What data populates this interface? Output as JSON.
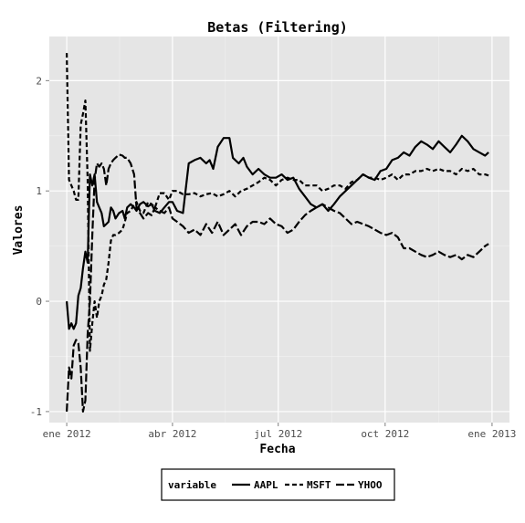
{
  "chart_data": {
    "type": "line",
    "title": "Betas (Filtering)",
    "xlabel": "Fecha",
    "ylabel": "Valores",
    "x_ticks": [
      "ene 2012",
      "abr 2012",
      "jul 2012",
      "oct 2012",
      "ene 2013"
    ],
    "x_tick_days": [
      0,
      91,
      182,
      274,
      366
    ],
    "y_ticks": [
      -1,
      0,
      1,
      2
    ],
    "ylim": [
      -1.1,
      2.4
    ],
    "xlim_days": [
      -15,
      381
    ],
    "grid": true,
    "legend": {
      "position": "bottom",
      "title": "variable",
      "entries": [
        "AAPL",
        "MSFT",
        "YHOO"
      ]
    },
    "series": [
      {
        "name": "AAPL",
        "line_style": "solid",
        "color": "#000000",
        "x_days": [
          0,
          2,
          4,
          6,
          8,
          10,
          12,
          14,
          16,
          18,
          20,
          22,
          24,
          26,
          28,
          30,
          32,
          34,
          36,
          38,
          40,
          42,
          45,
          48,
          50,
          52,
          55,
          58,
          60,
          63,
          66,
          70,
          73,
          76,
          80,
          84,
          88,
          91,
          95,
          100,
          105,
          110,
          115,
          120,
          123,
          126,
          130,
          135,
          140,
          143,
          148,
          152,
          155,
          160,
          165,
          170,
          175,
          180,
          185,
          190,
          195,
          200,
          205,
          210,
          215,
          220,
          225,
          230,
          235,
          240,
          245,
          250,
          255,
          260,
          265,
          270,
          275,
          280,
          285,
          290,
          295,
          300,
          305,
          310,
          315,
          320,
          325,
          330,
          335,
          340,
          345,
          350,
          355,
          360,
          363
        ],
        "values": [
          0.0,
          -0.25,
          -0.2,
          -0.25,
          -0.2,
          0.05,
          0.12,
          0.3,
          0.45,
          0.35,
          1.15,
          1.05,
          1.15,
          0.9,
          0.85,
          0.8,
          0.68,
          0.7,
          0.72,
          0.85,
          0.82,
          0.75,
          0.8,
          0.82,
          0.75,
          0.85,
          0.88,
          0.85,
          0.82,
          0.88,
          0.9,
          0.86,
          0.88,
          0.82,
          0.8,
          0.85,
          0.9,
          0.9,
          0.82,
          0.8,
          1.25,
          1.28,
          1.3,
          1.25,
          1.28,
          1.2,
          1.4,
          1.48,
          1.48,
          1.3,
          1.25,
          1.3,
          1.22,
          1.15,
          1.2,
          1.15,
          1.12,
          1.12,
          1.15,
          1.1,
          1.12,
          1.02,
          0.95,
          0.88,
          0.85,
          0.88,
          0.82,
          0.88,
          0.95,
          1.0,
          1.05,
          1.1,
          1.15,
          1.12,
          1.1,
          1.18,
          1.2,
          1.28,
          1.3,
          1.35,
          1.32,
          1.4,
          1.45,
          1.42,
          1.38,
          1.45,
          1.4,
          1.35,
          1.42,
          1.5,
          1.45,
          1.38,
          1.35,
          1.32,
          1.35
        ]
      },
      {
        "name": "MSFT",
        "line_style": "dashed",
        "color": "#000000",
        "x_days": [
          0,
          2,
          4,
          6,
          8,
          10,
          12,
          14,
          16,
          18,
          20,
          22,
          24,
          26,
          28,
          30,
          32,
          34,
          36,
          38,
          40,
          42,
          45,
          48,
          50,
          52,
          55,
          58,
          60,
          63,
          66,
          70,
          73,
          76,
          80,
          84,
          88,
          91,
          95,
          100,
          105,
          110,
          115,
          120,
          125,
          130,
          135,
          140,
          145,
          150,
          155,
          160,
          165,
          170,
          175,
          180,
          185,
          190,
          195,
          200,
          205,
          210,
          215,
          220,
          225,
          230,
          235,
          240,
          245,
          250,
          255,
          260,
          265,
          270,
          275,
          280,
          285,
          290,
          295,
          300,
          305,
          310,
          315,
          320,
          325,
          330,
          335,
          340,
          345,
          350,
          355,
          360,
          363
        ],
        "values": [
          2.25,
          1.1,
          1.05,
          1.0,
          0.92,
          0.92,
          1.6,
          1.7,
          1.82,
          1.1,
          -0.45,
          -0.2,
          0.0,
          -0.15,
          0.0,
          0.05,
          0.15,
          0.2,
          0.35,
          0.55,
          0.6,
          0.6,
          0.62,
          0.65,
          0.72,
          0.8,
          0.82,
          0.88,
          0.9,
          0.82,
          0.8,
          0.9,
          0.88,
          0.85,
          0.98,
          0.98,
          0.92,
          1.0,
          1.0,
          0.97,
          0.97,
          0.98,
          0.95,
          0.97,
          0.98,
          0.95,
          0.97,
          1.0,
          0.95,
          1.0,
          1.02,
          1.05,
          1.08,
          1.12,
          1.1,
          1.05,
          1.1,
          1.12,
          1.1,
          1.1,
          1.05,
          1.05,
          1.05,
          1.0,
          1.02,
          1.05,
          1.05,
          1.02,
          1.08,
          1.1,
          1.15,
          1.12,
          1.12,
          1.1,
          1.12,
          1.15,
          1.1,
          1.15,
          1.15,
          1.18,
          1.18,
          1.2,
          1.18,
          1.2,
          1.18,
          1.18,
          1.15,
          1.2,
          1.18,
          1.2,
          1.15,
          1.15,
          1.14
        ]
      },
      {
        "name": "YHOO",
        "line_style": "longdash",
        "color": "#000000",
        "x_days": [
          0,
          2,
          4,
          6,
          8,
          10,
          12,
          14,
          16,
          18,
          20,
          22,
          24,
          26,
          28,
          30,
          32,
          34,
          36,
          38,
          40,
          42,
          45,
          48,
          50,
          52,
          55,
          58,
          60,
          63,
          66,
          70,
          73,
          76,
          80,
          84,
          88,
          91,
          95,
          100,
          105,
          110,
          115,
          120,
          125,
          130,
          135,
          140,
          145,
          150,
          155,
          160,
          165,
          170,
          175,
          180,
          185,
          190,
          195,
          200,
          205,
          210,
          215,
          220,
          225,
          230,
          235,
          240,
          245,
          250,
          255,
          260,
          265,
          270,
          275,
          280,
          285,
          290,
          295,
          300,
          305,
          310,
          315,
          320,
          325,
          330,
          335,
          340,
          345,
          350,
          355,
          360,
          363
        ],
        "values": [
          -1.0,
          -0.6,
          -0.7,
          -0.4,
          -0.35,
          -0.38,
          -0.6,
          -1.0,
          -0.9,
          -0.3,
          0.0,
          0.6,
          1.1,
          1.25,
          1.22,
          1.25,
          1.2,
          1.05,
          1.2,
          1.25,
          1.28,
          1.3,
          1.33,
          1.32,
          1.3,
          1.3,
          1.25,
          1.15,
          0.85,
          0.8,
          0.75,
          0.8,
          0.78,
          0.85,
          0.82,
          0.8,
          0.85,
          0.75,
          0.72,
          0.68,
          0.62,
          0.65,
          0.6,
          0.7,
          0.62,
          0.72,
          0.6,
          0.65,
          0.7,
          0.6,
          0.68,
          0.72,
          0.72,
          0.7,
          0.75,
          0.7,
          0.68,
          0.62,
          0.65,
          0.72,
          0.78,
          0.82,
          0.85,
          0.88,
          0.85,
          0.82,
          0.8,
          0.75,
          0.7,
          0.72,
          0.7,
          0.68,
          0.65,
          0.62,
          0.6,
          0.62,
          0.58,
          0.48,
          0.48,
          0.45,
          0.42,
          0.4,
          0.42,
          0.45,
          0.42,
          0.4,
          0.42,
          0.38,
          0.42,
          0.4,
          0.45,
          0.5,
          0.52
        ]
      }
    ]
  }
}
